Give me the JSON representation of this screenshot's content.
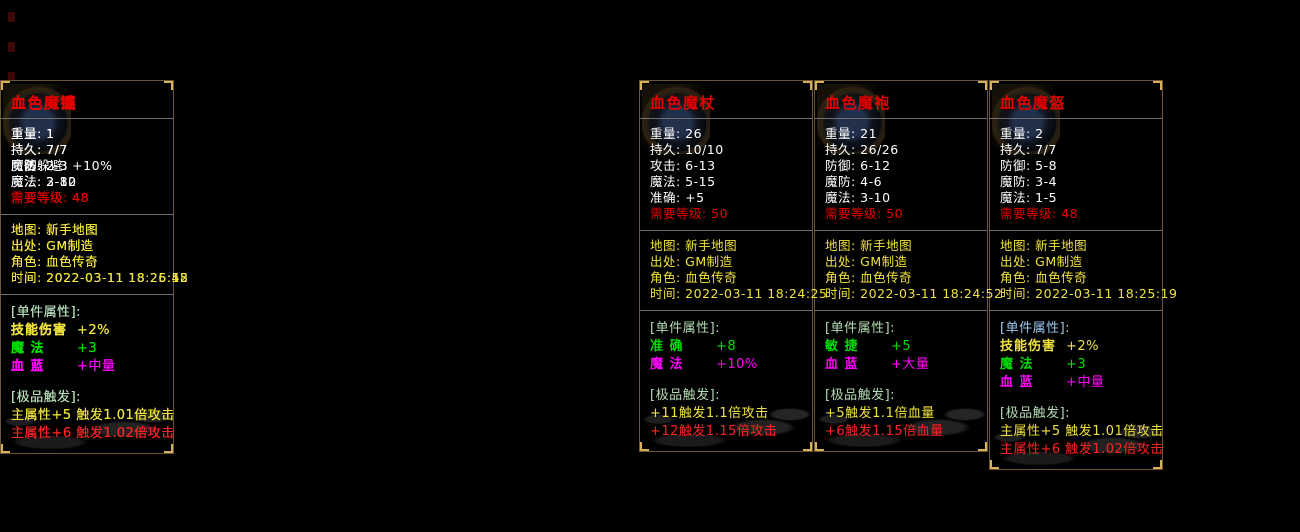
{
  "page": {
    "background": "#000000"
  },
  "colors": {
    "white": "#ffffff",
    "red": "#e60000",
    "bright_red": "#ff2323",
    "yellow": "#f0e23c",
    "green": "#00dc00",
    "magenta": "#ff00ff",
    "pale_green": "#b4dcb4",
    "pale_blue": "#9cc8f0",
    "divider": "#6f6f6f",
    "panel_border": "#6b5738",
    "corner_accent": "#d8b05a"
  },
  "panels": [
    {
      "title": "血色魔杖",
      "stats": [
        {
          "label": "重量",
          "value": "26"
        },
        {
          "label": "持久",
          "value": "10/10"
        },
        {
          "label": "攻击",
          "value": "6-13"
        },
        {
          "label": "魔法",
          "value": "5-15"
        },
        {
          "label": "准确",
          "value": "+5"
        }
      ],
      "requirement": {
        "label": "需要等级",
        "value": "50"
      },
      "info": [
        {
          "label": "地图",
          "value": "新手地图"
        },
        {
          "label": "出处",
          "value": "GM制造"
        },
        {
          "label": "角色",
          "value": "血色传奇"
        },
        {
          "label": "时间",
          "value": "2022-03-11 18:24:25"
        }
      ],
      "attr_header": "[单件属性]:",
      "attr_header_color": "pale_green",
      "attrs": [
        {
          "name": "准 确",
          "value": "+8",
          "color": "green"
        },
        {
          "name": "魔 法",
          "value": "+10%",
          "color": "magenta"
        }
      ],
      "trigger_header": "[极品触发]:",
      "trigger_header_color": "pale_green",
      "triggers": [
        {
          "text": "+11触发1.1倍攻击",
          "color": "yellow"
        },
        {
          "text": "+12触发1.15倍攻击",
          "color": "bright_red"
        }
      ]
    },
    {
      "title": "血色魔袍",
      "stats": [
        {
          "label": "重量",
          "value": "21"
        },
        {
          "label": "持久",
          "value": "26/26"
        },
        {
          "label": "防御",
          "value": "6-12"
        },
        {
          "label": "魔防",
          "value": "4-6"
        },
        {
          "label": "魔法",
          "value": "3-10"
        }
      ],
      "requirement": {
        "label": "需要等级",
        "value": "50"
      },
      "info": [
        {
          "label": "地图",
          "value": "新手地图"
        },
        {
          "label": "出处",
          "value": "GM制造"
        },
        {
          "label": "角色",
          "value": "血色传奇"
        },
        {
          "label": "时间",
          "value": "2022-03-11 18:24:52"
        }
      ],
      "attr_header": "[单件属性]:",
      "attr_header_color": "pale_green",
      "attrs": [
        {
          "name": "敏 捷",
          "value": "+5",
          "color": "green"
        },
        {
          "name": "血 蓝",
          "value": "+大量",
          "color": "magenta"
        }
      ],
      "trigger_header": "[极品触发]:",
      "trigger_header_color": "pale_green",
      "triggers": [
        {
          "text": "+5触发1.1倍血量",
          "color": "yellow"
        },
        {
          "text": "+6触发1.15倍血量",
          "color": "bright_red"
        }
      ]
    },
    {
      "title": "血色魔盔",
      "stats": [
        {
          "label": "重量",
          "value": "2"
        },
        {
          "label": "持久",
          "value": "7/7"
        },
        {
          "label": "防御",
          "value": "5-8"
        },
        {
          "label": "魔防",
          "value": "3-4"
        },
        {
          "label": "魔法",
          "value": "1-5"
        }
      ],
      "requirement": {
        "label": "需要等级",
        "value": "48"
      },
      "info": [
        {
          "label": "地图",
          "value": "新手地图"
        },
        {
          "label": "出处",
          "value": "GM制造"
        },
        {
          "label": "角色",
          "value": "血色传奇"
        },
        {
          "label": "时间",
          "value": "2022-03-11 18:25:19"
        }
      ],
      "attr_header": "[单件属性]:",
      "attr_header_color": "pale_blue",
      "attrs": [
        {
          "name": "技能伤害",
          "value": "+2%",
          "color": "yellow"
        },
        {
          "name": "魔 法",
          "value": "+3",
          "color": "green"
        },
        {
          "name": "血 蓝",
          "value": "+中量",
          "color": "magenta"
        }
      ],
      "trigger_header": "[极品触发]:",
      "trigger_header_color": "pale_green",
      "triggers": [
        {
          "text": "主属性+5 触发1.01倍攻击",
          "color": "yellow"
        },
        {
          "text": "主属性+6 触发1.02倍攻击",
          "color": "bright_red"
        }
      ]
    },
    {
      "title": "血色魔链",
      "stats": [
        {
          "label": "重量",
          "value": "1"
        },
        {
          "label": "持久",
          "value": "7/7"
        },
        {
          "label": "魔法躲避",
          "value": "+10%"
        },
        {
          "label": "魔法",
          "value": "2-12"
        }
      ],
      "requirement": {
        "label": "需要等级",
        "value": "48"
      },
      "info": [
        {
          "label": "地图",
          "value": "新手地图"
        },
        {
          "label": "出处",
          "value": "GM制造"
        },
        {
          "label": "角色",
          "value": "血色传奇"
        },
        {
          "label": "时间",
          "value": "2022-03-11 18:25:52"
        }
      ],
      "attr_header": "[单件属性]:",
      "attr_header_color": "pale_blue",
      "attrs": [
        {
          "name": "技能伤害",
          "value": "+2%",
          "color": "yellow"
        },
        {
          "name": "魔 法",
          "value": "+3",
          "color": "green"
        },
        {
          "name": "血 蓝",
          "value": "+中量",
          "color": "magenta"
        }
      ],
      "trigger_header": "[极品触发]:",
      "trigger_header_color": "pale_green",
      "triggers": [
        {
          "text": "主属性+5 触发1.01倍攻击",
          "color": "yellow"
        },
        {
          "text": "主属性+6 触发1.02倍攻击",
          "color": "bright_red"
        }
      ]
    },
    {
      "title": "血色魔镯",
      "stats": [
        {
          "label": "重量",
          "value": "1"
        },
        {
          "label": "持久",
          "value": "7/7"
        },
        {
          "label": "防御",
          "value": "2-3"
        },
        {
          "label": "魔法",
          "value": "2-8"
        }
      ],
      "requirement": {
        "label": "需要等级",
        "value": "48"
      },
      "info": [
        {
          "label": "地图",
          "value": "新手地图"
        },
        {
          "label": "出处",
          "value": "GM制造"
        },
        {
          "label": "角色",
          "value": "血色传奇"
        },
        {
          "label": "时间",
          "value": "2022-03-11 18:26:18"
        }
      ],
      "attr_header": "[单件属性]:",
      "attr_header_color": "pale_green",
      "attrs": [
        {
          "name": "技能伤害",
          "value": "+2%",
          "color": "yellow"
        },
        {
          "name": "魔 法",
          "value": "+3",
          "color": "green"
        },
        {
          "name": "血 蓝",
          "value": "+中量",
          "color": "magenta"
        }
      ],
      "trigger_header": "[极品触发]:",
      "trigger_header_color": "pale_green",
      "triggers": [
        {
          "text": "主属性+5 触发1.01倍攻击",
          "color": "yellow"
        },
        {
          "text": "主属性+6 触发1.02倍攻击",
          "color": "bright_red"
        }
      ]
    },
    {
      "title": "血色魔戒",
      "stats": [
        {
          "label": "重量",
          "value": "1"
        },
        {
          "label": "持久",
          "value": "7/7"
        },
        {
          "label": "魔防",
          "value": "2-3"
        },
        {
          "label": "魔法",
          "value": "3-10"
        }
      ],
      "requirement": {
        "label": "需要等级",
        "value": "48"
      },
      "info": [
        {
          "label": "地图",
          "value": "新手地图"
        },
        {
          "label": "出处",
          "value": "GM制造"
        },
        {
          "label": "角色",
          "value": "血色传奇"
        },
        {
          "label": "时间",
          "value": "2022-03-11 18:26:45"
        }
      ],
      "attr_header": "[单件属性]:",
      "attr_header_color": "pale_green",
      "attrs": [
        {
          "name": "技能伤害",
          "value": "+2%",
          "color": "yellow"
        },
        {
          "name": "魔 法",
          "value": "+3",
          "color": "green"
        },
        {
          "name": "血 蓝",
          "value": "+中量",
          "color": "magenta"
        }
      ],
      "trigger_header": "[极品触发]:",
      "trigger_header_color": "pale_green",
      "triggers": [
        {
          "text": "主属性+5 触发1.01倍攻击",
          "color": "yellow"
        },
        {
          "text": "主属性+6 触发1.02倍攻击",
          "color": "bright_red"
        }
      ]
    }
  ]
}
